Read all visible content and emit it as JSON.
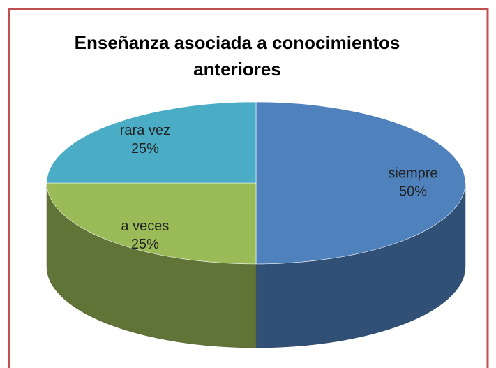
{
  "chart_data": {
    "type": "pie3d",
    "title": "Enseñanza asociada a conocimientos anteriores",
    "categories": [
      "siempre",
      "a veces",
      "rara vez"
    ],
    "values": [
      50,
      25,
      25
    ],
    "value_labels": [
      "50%",
      "25%",
      "25%"
    ],
    "colors": [
      "#4f81bd",
      "#9bbb59",
      "#4bacc6"
    ]
  }
}
